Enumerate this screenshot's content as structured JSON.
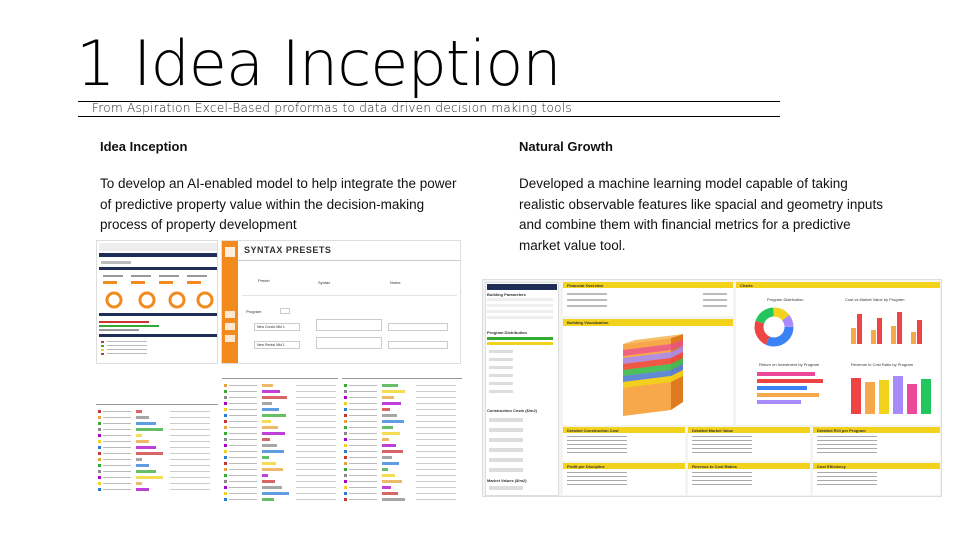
{
  "slide": {
    "title": "1 Idea Inception",
    "subtitle": "From Aspiration Excel-Based proformas to data driven decision making tools"
  },
  "left_column": {
    "heading": "Idea Inception",
    "body": "To develop an AI-enabled model to help integrate the power of predictive property value within the decision-making process of property development"
  },
  "right_column": {
    "heading": "Natural Growth",
    "body": "Developed a machine learning model capable of taking realistic observable features like spacial and geometry inputs and combine them with financial metrics for a predictive market value tool."
  },
  "syntax_presets": {
    "title": "SYNTAX PRESETS",
    "col_preset": "Preset",
    "col_syntax": "Syntax",
    "col_notes": "Notes",
    "row_program": "Program",
    "row_new_condo": "New Condo Mkt 1",
    "row_new_rental": "New Rental Mkt 1"
  },
  "market_tool": {
    "building_params": "Building Parameters",
    "program_distribution": "Program Distribution",
    "construction_costs": "Construction Costs ($/m2)",
    "market_values": "Market Values ($/m2)",
    "financial_overview": "Financial Overview",
    "building_visualization": "Building Visualization",
    "charts": "Charts",
    "chart_program_distribution": "Program Distribution",
    "chart_cost_vs_market": "Cost vs Market Value by Program",
    "chart_return_on_investment": "Return on Investment by Program",
    "chart_revenue_to_cost": "Revenue to Cost Ratio by Program",
    "detailed_construction_cost": "Detailed Construction Cost",
    "detailed_market_value": "Detailed Market Value",
    "detailed_roi": "Detailed ROI per Program",
    "profit_per_discipline": "Profit per Discipline",
    "revenue_to_cost_ratios": "Revenue to Cost Ratios",
    "cost_efficiency": "Cost Efficiency"
  },
  "colors": {
    "accent_orange": "#f28a1e",
    "accent_yellow": "#f2d21a",
    "navy": "#1f2d57"
  }
}
